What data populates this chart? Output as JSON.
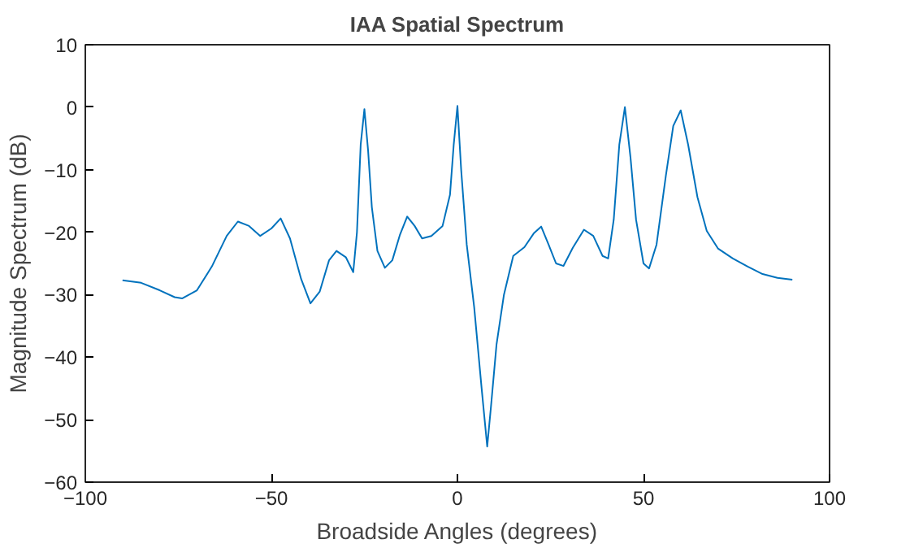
{
  "chart_data": {
    "type": "line",
    "title": "IAA Spatial Spectrum",
    "xlabel": "Broadside Angles (degrees)",
    "ylabel": "Magnitude Spectrum (dB)",
    "xlim": [
      -100,
      100
    ],
    "xticks": [
      -100,
      -50,
      0,
      50,
      100
    ],
    "ylim": [
      -60,
      10
    ],
    "yticks": [
      -60,
      -50,
      -40,
      -30,
      -20,
      -10,
      0,
      10
    ],
    "grid": false,
    "series": [
      {
        "color": "#0072bd",
        "x": [
          -90,
          -85,
          -80,
          -76,
          -74,
          -70,
          -66,
          -62,
          -59,
          -56,
          -53,
          -50,
          -47.5,
          -45,
          -42,
          -39.5,
          -37,
          -34.5,
          -32.5,
          -30,
          -28,
          -27,
          -26,
          -25,
          -24,
          -23,
          -21.5,
          -19.5,
          -17.5,
          -15.5,
          -13.5,
          -11.5,
          -9.5,
          -7,
          -4,
          -2,
          -1,
          0,
          1,
          2.5,
          4.5,
          6.5,
          8,
          9,
          10.5,
          12.5,
          15,
          18,
          20.5,
          22.5,
          24.5,
          26.5,
          28.5,
          31,
          34,
          36.5,
          39,
          40.5,
          42,
          43.5,
          45,
          46.5,
          48,
          50,
          51.5,
          53.5,
          56,
          58,
          60,
          62,
          64.5,
          67,
          70,
          74,
          78,
          82,
          86,
          90
        ],
        "values": [
          -27.7,
          -28.1,
          -29.3,
          -30.4,
          -30.6,
          -29.3,
          -25.5,
          -20.6,
          -18.3,
          -19.0,
          -20.6,
          -19.4,
          -17.8,
          -21.0,
          -27.5,
          -31.4,
          -29.5,
          -24.5,
          -23.0,
          -24.0,
          -26.4,
          -20,
          -6,
          -0.3,
          -7,
          -16,
          -23,
          -25.7,
          -24.5,
          -20.5,
          -17.5,
          -19.0,
          -21.0,
          -20.6,
          -19.0,
          -14,
          -6,
          0.2,
          -10,
          -22,
          -32,
          -45,
          -54.3,
          -48,
          -38,
          -30,
          -23.8,
          -22.4,
          -20.2,
          -19.1,
          -22,
          -25,
          -25.4,
          -22.5,
          -19.6,
          -20.6,
          -23.8,
          -24.2,
          -18,
          -6,
          0,
          -8,
          -18,
          -25,
          -25.8,
          -22,
          -11,
          -3,
          -0.5,
          -6,
          -14.4,
          -19.8,
          -22.6,
          -24.2,
          -25.5,
          -26.7,
          -27.3,
          -27.6
        ]
      }
    ]
  }
}
